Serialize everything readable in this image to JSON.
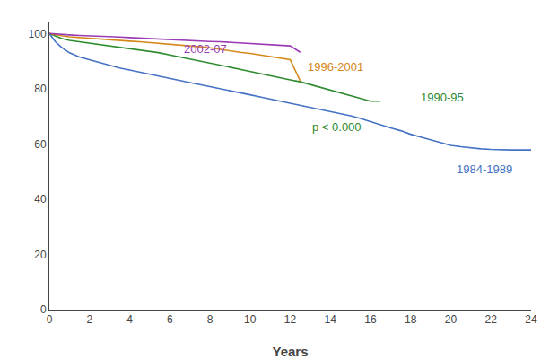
{
  "chart_data": {
    "type": "line",
    "xlabel": "Years",
    "xlim": [
      0,
      24
    ],
    "ylim": [
      0,
      104
    ],
    "xticks": [
      0,
      2,
      4,
      6,
      8,
      10,
      12,
      14,
      16,
      18,
      20,
      22,
      24
    ],
    "yticks": [
      0,
      20,
      40,
      60,
      80,
      100
    ],
    "grid": false,
    "annotations": [
      {
        "text": "p < 0.000",
        "x": 13.0,
        "y": 66,
        "color": "#2e8b2e"
      }
    ],
    "series": [
      {
        "name": "1984-1989",
        "color": "#4472c4",
        "label_x": 20.2,
        "label_y": 51,
        "x": [
          0,
          0.3,
          0.6,
          1,
          1.5,
          2,
          2.5,
          3,
          3.5,
          4,
          4.5,
          5,
          5.5,
          6,
          6.5,
          7,
          7.5,
          8,
          8.5,
          9,
          9.5,
          10,
          10.5,
          11,
          11.5,
          12,
          12.5,
          13,
          13.5,
          14,
          14.5,
          15,
          15.5,
          16,
          16.5,
          17,
          17.5,
          18,
          18.5,
          19,
          19.5,
          20,
          20.5,
          21,
          21.5,
          22,
          22.5,
          23,
          23.5,
          24
        ],
        "values": [
          100,
          97,
          95,
          93,
          91.5,
          90.5,
          89.5,
          88.5,
          87.5,
          86.8,
          86,
          85.2,
          84.5,
          83.8,
          83,
          82.2,
          81.5,
          80.8,
          80,
          79.2,
          78.5,
          77.8,
          77,
          76.2,
          75.5,
          74.8,
          74,
          73.2,
          72.5,
          71.8,
          71,
          70.2,
          69.2,
          68,
          67,
          65.8,
          64.8,
          63.5,
          62.5,
          61.5,
          60.5,
          59.5,
          59,
          58.5,
          58.2,
          58,
          57.8,
          57.8,
          57.8,
          57.8
        ]
      },
      {
        "name": "1990-95",
        "color": "#2e8b2e",
        "label_x": 18.4,
        "label_y": 77,
        "x": [
          0,
          0.3,
          0.6,
          1,
          1.5,
          2,
          2.5,
          3,
          3.5,
          4,
          4.5,
          5,
          5.5,
          6,
          6.5,
          7,
          7.5,
          8,
          8.5,
          9,
          9.5,
          10,
          10.5,
          11,
          11.5,
          12,
          12.5,
          13,
          13.5,
          14,
          14.5,
          15,
          15.5,
          16,
          16.5
        ],
        "values": [
          100,
          99,
          98.2,
          97.5,
          97,
          96.5,
          96,
          95.5,
          95,
          94.5,
          94,
          93.5,
          93,
          92.2,
          91.5,
          90.8,
          90,
          89.2,
          88.5,
          87.8,
          87,
          86.2,
          85.5,
          84.8,
          84,
          83.2,
          82.5,
          81.5,
          80.5,
          79.5,
          78.5,
          77.5,
          76.5,
          75.5,
          75.5
        ]
      },
      {
        "name": "1996-2001",
        "color": "#d4881a",
        "label_x": 12.8,
        "label_y": 88,
        "x": [
          0,
          0.3,
          0.6,
          1,
          1.5,
          2,
          2.5,
          3,
          3.5,
          4,
          4.5,
          5,
          5.5,
          6,
          6.5,
          7,
          7.5,
          8,
          8.5,
          9,
          9.5,
          10,
          10.5,
          11,
          11.5,
          12,
          12.5
        ],
        "values": [
          100,
          99.5,
          99.2,
          98.8,
          98.5,
          98.2,
          98,
          97.7,
          97.5,
          97.2,
          97,
          96.7,
          96.5,
          96.2,
          96,
          95.7,
          95.2,
          94.8,
          94.2,
          93.8,
          93.2,
          92.8,
          92.2,
          91.8,
          91.2,
          90.5,
          82.8
        ]
      },
      {
        "name": "2002-07",
        "color": "#9b3ab5",
        "label_x": 6.6,
        "label_y": 94.5,
        "x": [
          0,
          0.3,
          0.6,
          1,
          1.5,
          2,
          2.5,
          3,
          3.5,
          4,
          4.5,
          5,
          5.5,
          6,
          6.5,
          7,
          7.5,
          8,
          8.5,
          9,
          9.5,
          10,
          10.5,
          11,
          11.5,
          12,
          12.5
        ],
        "values": [
          100,
          99.8,
          99.7,
          99.5,
          99.3,
          99.2,
          99,
          98.8,
          98.7,
          98.5,
          98.3,
          98.2,
          98,
          97.8,
          97.6,
          97.5,
          97.3,
          97.1,
          97,
          96.8,
          96.6,
          96.4,
          96.2,
          96,
          95.8,
          95.5,
          93.2
        ]
      }
    ]
  }
}
